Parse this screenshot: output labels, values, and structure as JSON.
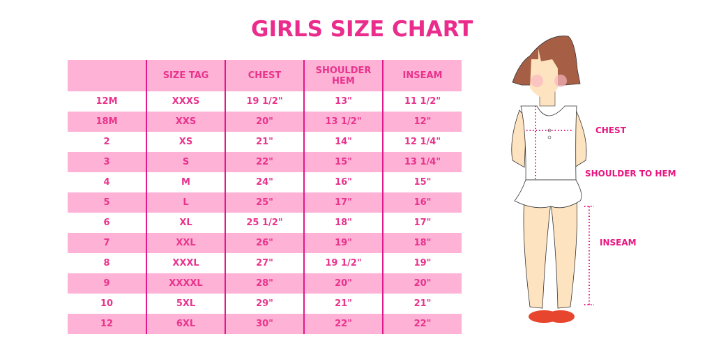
{
  "title": "GIRLS SIZE CHART",
  "table": {
    "headers": [
      "",
      "SIZE TAG",
      "CHEST",
      "SHOULDER HEM",
      "INSEAM"
    ],
    "rows": [
      [
        "12M",
        "XXXS",
        "19 1/2\"",
        "13\"",
        "11 1/2\""
      ],
      [
        "18M",
        "XXS",
        "20\"",
        "13 1/2\"",
        "12\""
      ],
      [
        "2",
        "XS",
        "21\"",
        "14\"",
        "12 1/4\""
      ],
      [
        "3",
        "S",
        "22\"",
        "15\"",
        "13 1/4\""
      ],
      [
        "4",
        "M",
        "24\"",
        "16\"",
        "15\""
      ],
      [
        "5",
        "L",
        "25\"",
        "17\"",
        "16\""
      ],
      [
        "6",
        "XL",
        "25 1/2\"",
        "18\"",
        "17\""
      ],
      [
        "7",
        "XXL",
        "26\"",
        "19\"",
        "18\""
      ],
      [
        "8",
        "XXXL",
        "27\"",
        "19 1/2\"",
        "19\""
      ],
      [
        "9",
        "XXXXL",
        "28\"",
        "20\"",
        "20\""
      ],
      [
        "10",
        "5XL",
        "29\"",
        "21\"",
        "21\""
      ],
      [
        "12",
        "6XL",
        "30\"",
        "22\"",
        "22\""
      ]
    ]
  },
  "illustration": {
    "chest_label": "CHEST",
    "shoulder_label": "SHOULDER TO HEM",
    "inseam_label": "INSEAM"
  },
  "colors": {
    "accent": "#ea2c8d",
    "row_pink": "#fdb2d6"
  }
}
